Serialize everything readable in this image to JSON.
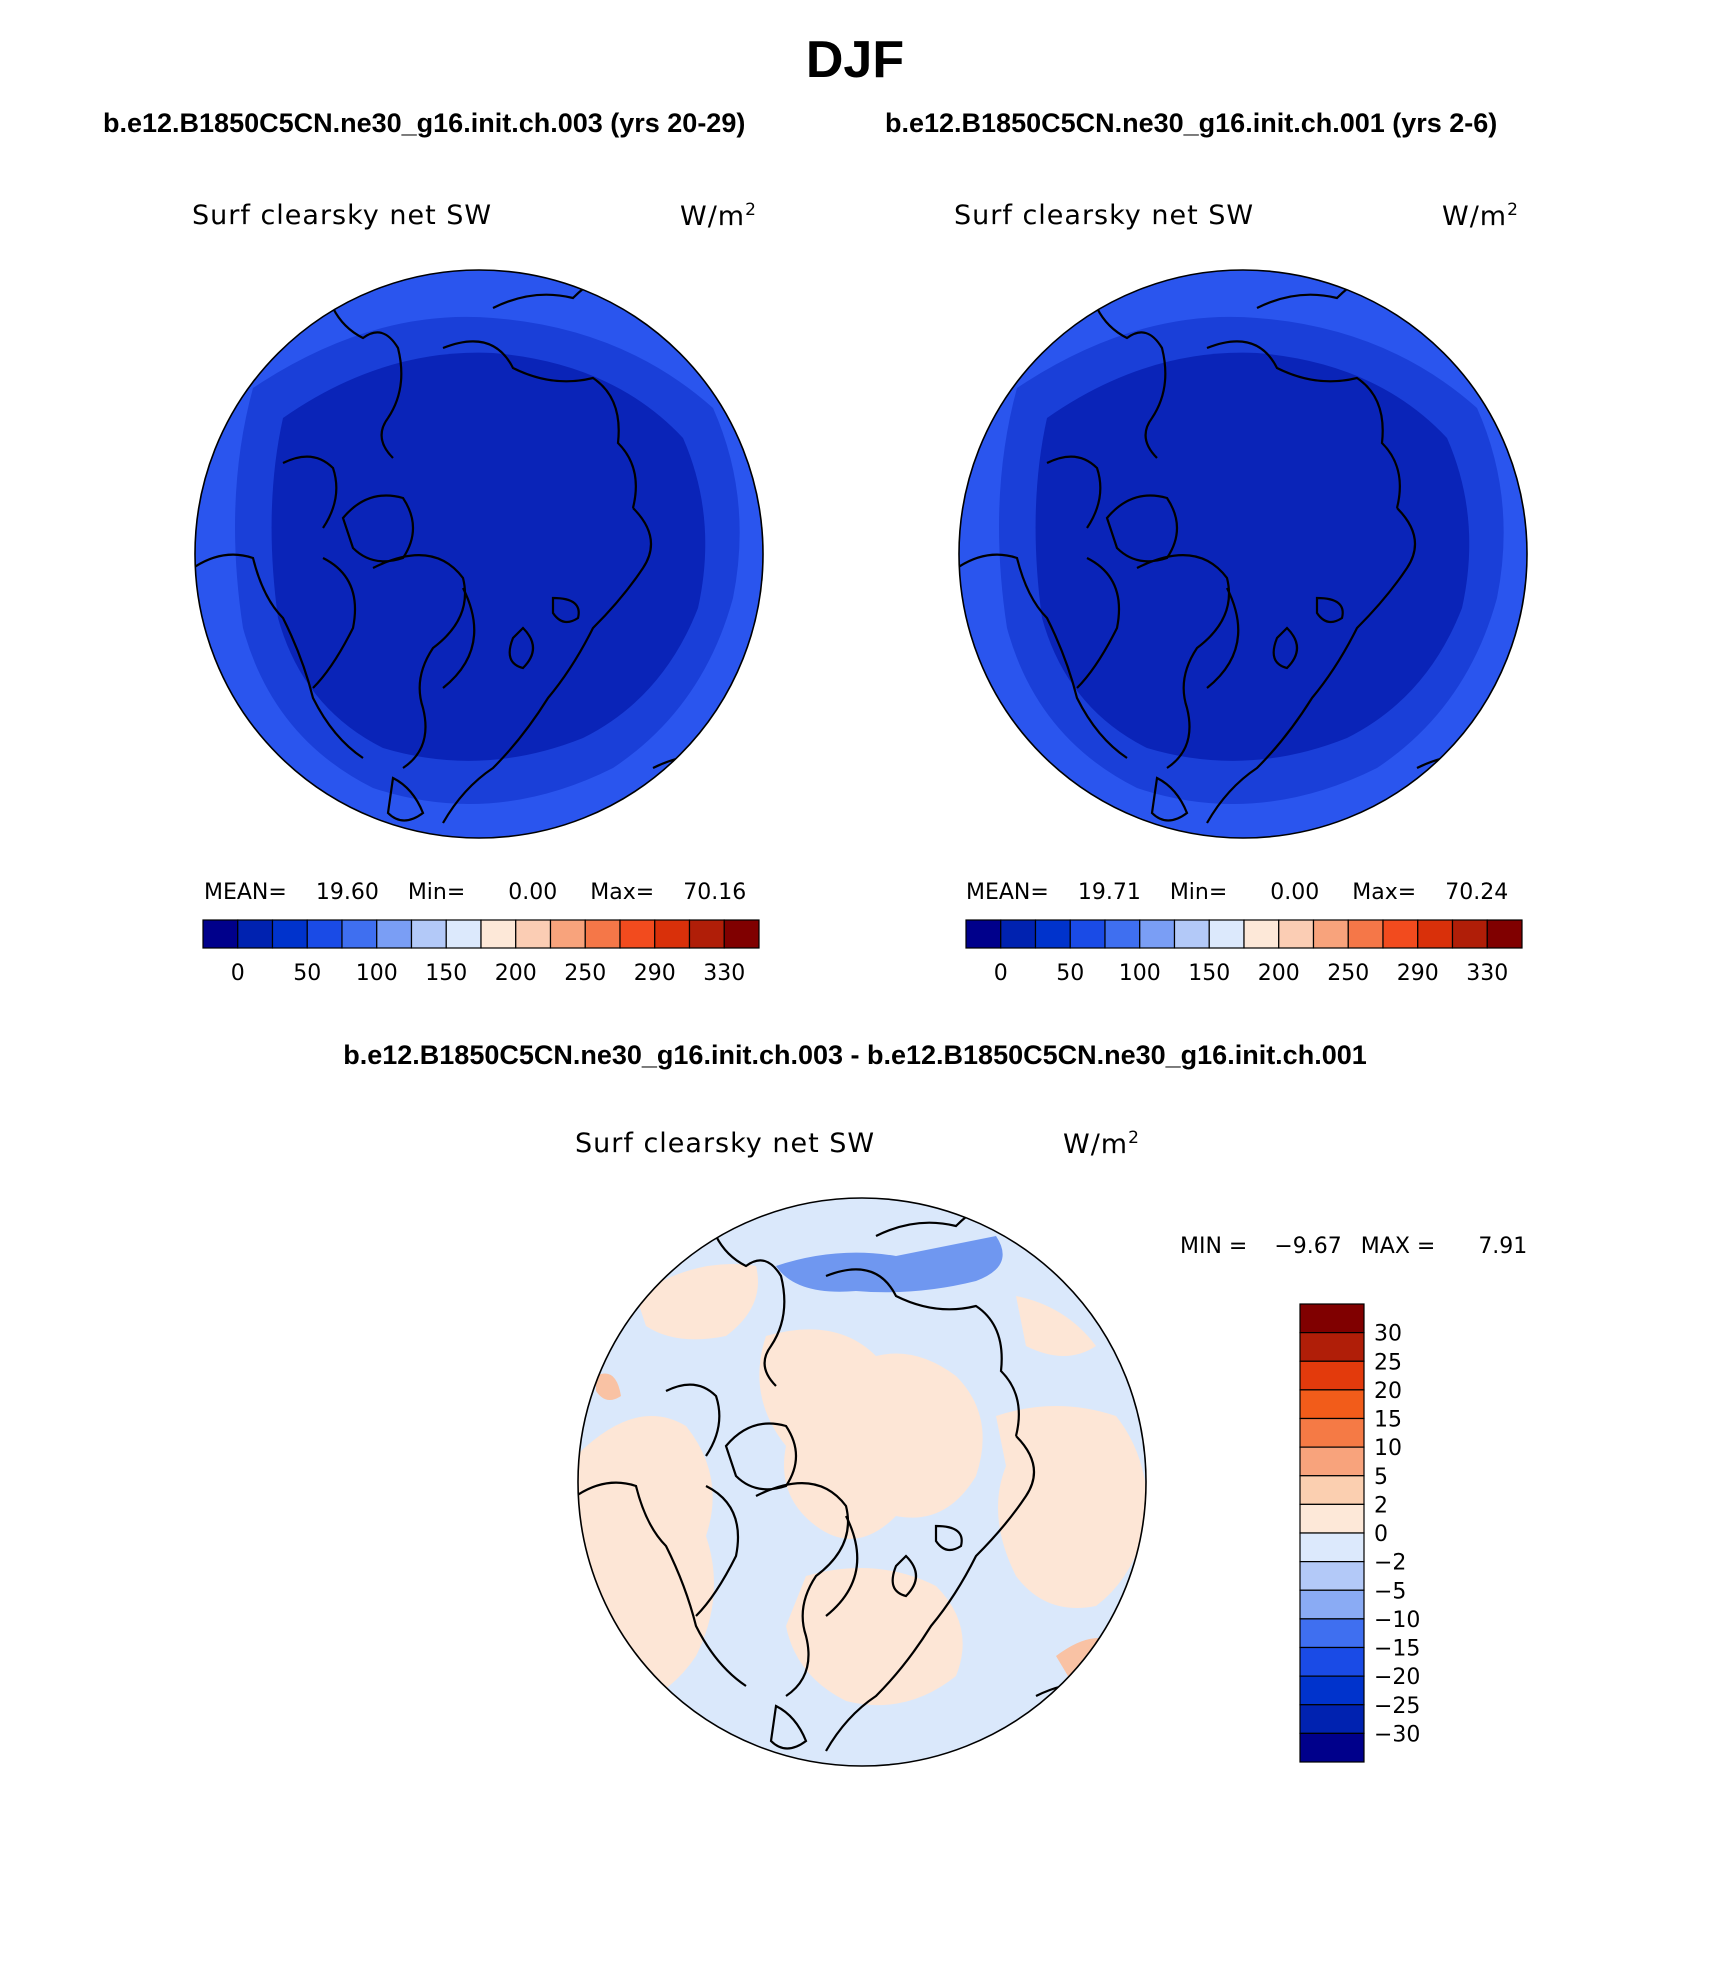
{
  "title": "DJF",
  "panels": [
    {
      "case": "b.e12.B1850C5CN.ne30_g16.init.ch.003 (yrs 20-29)",
      "variable": "Surf clearsky net SW",
      "units": "W/m",
      "units_exp": "2",
      "stats": {
        "mean_label": "MEAN=",
        "mean": "19.60",
        "min_label": "Min=",
        "min": "0.00",
        "max_label": "Max=",
        "max": "70.16"
      }
    },
    {
      "case": "b.e12.B1850C5CN.ne30_g16.init.ch.001 (yrs 2-6)",
      "variable": "Surf clearsky net SW",
      "units": "W/m",
      "units_exp": "2",
      "stats": {
        "mean_label": "MEAN=",
        "mean": "19.71",
        "min_label": "Min=",
        "min": "0.00",
        "max_label": "Max=",
        "max": "70.24"
      }
    }
  ],
  "diff": {
    "title": "b.e12.B1850C5CN.ne30_g16.init.ch.003 - b.e12.B1850C5CN.ne30_g16.init.ch.001",
    "variable": "Surf clearsky net SW",
    "units": "W/m",
    "units_exp": "2",
    "stats": {
      "min_label": "MIN =",
      "min": "−9.67",
      "max_label": "MAX =",
      "max": "7.91"
    }
  },
  "colorbar_abs": {
    "colors": [
      "#00008b",
      "#0022b0",
      "#0033cc",
      "#1a4be6",
      "#3f6ff0",
      "#7a9ef5",
      "#b3c9f8",
      "#dce9fc",
      "#fde8d8",
      "#fbcdb4",
      "#f8a37c",
      "#f57748",
      "#f24b1e",
      "#d9300a",
      "#b01e08",
      "#800000"
    ],
    "labels": [
      "0",
      "50",
      "100",
      "150",
      "200",
      "250",
      "290",
      "330"
    ]
  },
  "colorbar_diff": {
    "colors": [
      "#800000",
      "#b01e08",
      "#e33a0c",
      "#f25c1a",
      "#f57a45",
      "#f8a37c",
      "#fbcfb0",
      "#fde8d8",
      "#dce9fc",
      "#b3c9f8",
      "#8aabf4",
      "#3f6ff0",
      "#1a4be6",
      "#0033cc",
      "#0022b0",
      "#00008b"
    ],
    "labels": [
      "30",
      "25",
      "20",
      "15",
      "10",
      "5",
      "2",
      "0",
      "−2",
      "−5",
      "−10",
      "−15",
      "−20",
      "−25",
      "−30"
    ]
  },
  "map_colors": {
    "abs_outer": "#2a55ee",
    "abs_mid": "#1a3fd8",
    "abs_inner": "#0a24b8",
    "diff_neg": "#dae8fb",
    "diff_pos": "#fde6d6",
    "diff_strong_neg": "#6f97f0",
    "diff_strong_pos": "#f9c2a4"
  }
}
